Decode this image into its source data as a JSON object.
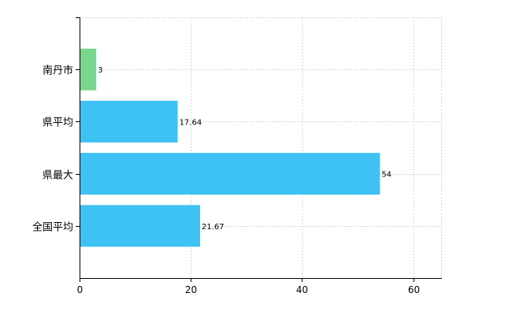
{
  "chart_data": {
    "type": "bar",
    "orientation": "horizontal",
    "categories": [
      "南丹市",
      "県平均",
      "県最大",
      "全国平均"
    ],
    "values": [
      3,
      17.64,
      54,
      21.67
    ],
    "data_labels": [
      "3",
      "17.64",
      "54",
      "21.67"
    ],
    "bar_colors": [
      "#7ad68c",
      "#3ec1f3",
      "#3ec1f3",
      "#3ec1f3"
    ],
    "xlim": [
      0,
      65
    ],
    "x_ticks": [
      0,
      20,
      40,
      60
    ],
    "x_tick_labels": [
      "0",
      "20",
      "40",
      "60"
    ],
    "grid": true,
    "grid_color": "#d3d3d3",
    "axis_color": "#000000"
  }
}
